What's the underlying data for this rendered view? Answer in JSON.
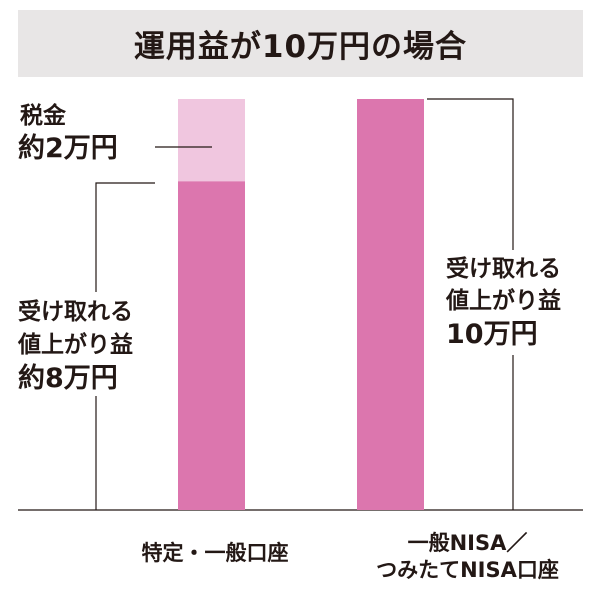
{
  "colors": {
    "tax": "#f0c6df",
    "profit": "#dc76ae",
    "accent_text": "#d7338f",
    "title_bg": "#e8e6e6"
  },
  "chart_data": {
    "type": "bar",
    "stacked": true,
    "title": "運用益が10万円の場合",
    "categories": [
      "特定・一般口座",
      "一般NISA／つみたてNISA口座"
    ],
    "category_lines": [
      [
        "特定・一般口座"
      ],
      [
        "一般NISA／",
        "つみたてNISA口座"
      ]
    ],
    "unit": "万円",
    "ylim": [
      0,
      10
    ],
    "series": [
      {
        "key": "profit",
        "values": [
          8,
          10
        ]
      },
      {
        "key": "tax",
        "values": [
          2,
          0
        ]
      }
    ],
    "annotations": {
      "tax_left": {
        "label": "税金",
        "value": "約2万円"
      },
      "profit_left": {
        "label_lines": [
          "受け取れる",
          "値上がり益"
        ],
        "value": "約8万円"
      },
      "profit_right": {
        "label_lines": [
          "受け取れる",
          "値上がり益"
        ],
        "value": "10万円"
      }
    }
  }
}
